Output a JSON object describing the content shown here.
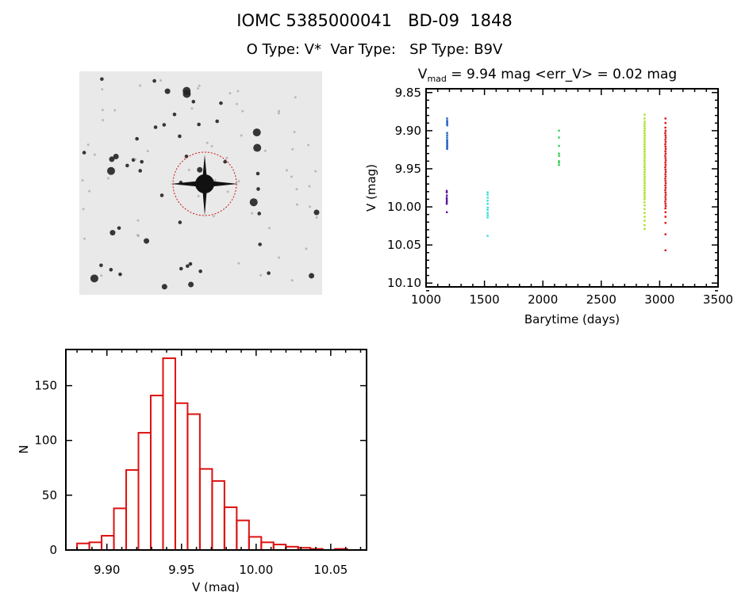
{
  "header": {
    "title": "IOMC 5385000041   BD-09  1848",
    "subtitle": "O Type: V*  Var Type:   SP Type: B9V"
  },
  "finder_image": {
    "circle_color": "#cc1111"
  },
  "chart_data": [
    {
      "type": "scatter",
      "title_main": "V",
      "title_sub": "mad",
      "title_rest": " = 9.94 mag <err_V> = 0.02 mag",
      "xlabel": "Barytime (days)",
      "ylabel": "V (mag)",
      "xlim": [
        1000,
        3500
      ],
      "ylim": [
        10.105,
        9.845
      ],
      "y_reversed": true,
      "xticks": [
        "1000",
        "1500",
        "2000",
        "2500",
        "3000",
        "3500"
      ],
      "yticks": [
        "9.85",
        "9.90",
        "9.95",
        "10.00",
        "10.05",
        "10.10"
      ],
      "grid": false,
      "series": [
        {
          "color": "#1f5fbf",
          "points": [
            [
              1180,
              9.884
            ],
            [
              1180,
              9.887
            ],
            [
              1181,
              9.889
            ],
            [
              1180,
              9.891
            ],
            [
              1181,
              9.893
            ],
            [
              1180,
              9.903
            ],
            [
              1181,
              9.906
            ],
            [
              1180,
              9.909
            ],
            [
              1180,
              9.912
            ],
            [
              1181,
              9.914
            ],
            [
              1180,
              9.916
            ],
            [
              1181,
              9.918
            ],
            [
              1180,
              9.92
            ],
            [
              1181,
              9.922
            ],
            [
              1180,
              9.924
            ]
          ]
        },
        {
          "color": "#5a1a9a",
          "points": [
            [
              1177,
              9.979
            ],
            [
              1177,
              9.981
            ],
            [
              1178,
              9.985
            ],
            [
              1177,
              9.988
            ],
            [
              1177,
              9.99
            ],
            [
              1178,
              9.992
            ],
            [
              1177,
              9.994
            ],
            [
              1177,
              9.996
            ],
            [
              1178,
              10.007
            ]
          ]
        },
        {
          "color": "#33dddd",
          "points": [
            [
              1527,
              9.981
            ],
            [
              1527,
              9.984
            ],
            [
              1528,
              9.988
            ],
            [
              1527,
              9.992
            ],
            [
              1527,
              9.996
            ],
            [
              1528,
              10.001
            ],
            [
              1527,
              10.004
            ],
            [
              1527,
              10.008
            ],
            [
              1528,
              10.011
            ],
            [
              1527,
              10.014
            ],
            [
              1527,
              10.038
            ]
          ]
        },
        {
          "color": "#33cc55",
          "points": [
            [
              2138,
              9.9
            ],
            [
              2138,
              9.909
            ],
            [
              2138,
              9.92
            ],
            [
              2138,
              9.93
            ],
            [
              2139,
              9.933
            ],
            [
              2138,
              9.94
            ],
            [
              2138,
              9.942
            ],
            [
              2138,
              9.945
            ]
          ]
        },
        {
          "color": "#a8e020",
          "points": [
            [
              2871,
              9.879
            ],
            [
              2870,
              9.884
            ],
            [
              2872,
              9.888
            ],
            [
              2871,
              9.891
            ],
            [
              2870,
              9.894
            ],
            [
              2872,
              9.897
            ],
            [
              2871,
              9.9
            ],
            [
              2870,
              9.903
            ],
            [
              2872,
              9.906
            ],
            [
              2871,
              9.909
            ],
            [
              2870,
              9.912
            ],
            [
              2872,
              9.915
            ],
            [
              2871,
              9.918
            ],
            [
              2870,
              9.921
            ],
            [
              2872,
              9.924
            ],
            [
              2871,
              9.927
            ],
            [
              2870,
              9.93
            ],
            [
              2872,
              9.933
            ],
            [
              2871,
              9.936
            ],
            [
              2870,
              9.939
            ],
            [
              2872,
              9.942
            ],
            [
              2871,
              9.945
            ],
            [
              2870,
              9.948
            ],
            [
              2872,
              9.951
            ],
            [
              2871,
              9.954
            ],
            [
              2870,
              9.957
            ],
            [
              2872,
              9.96
            ],
            [
              2871,
              9.963
            ],
            [
              2870,
              9.966
            ],
            [
              2872,
              9.969
            ],
            [
              2871,
              9.972
            ],
            [
              2870,
              9.975
            ],
            [
              2872,
              9.978
            ],
            [
              2871,
              9.981
            ],
            [
              2870,
              9.984
            ],
            [
              2872,
              9.987
            ],
            [
              2871,
              9.99
            ],
            [
              2870,
              9.994
            ],
            [
              2872,
              9.998
            ],
            [
              2871,
              10.003
            ],
            [
              2870,
              10.008
            ],
            [
              2872,
              10.013
            ],
            [
              2871,
              10.018
            ],
            [
              2870,
              10.024
            ],
            [
              2871,
              10.029
            ]
          ]
        },
        {
          "color": "#dd1111",
          "points": [
            [
              3050,
              9.884
            ],
            [
              3050,
              9.89
            ],
            [
              3049,
              9.896
            ],
            [
              3051,
              9.9
            ],
            [
              3048,
              9.903
            ],
            [
              3050,
              9.906
            ],
            [
              3052,
              9.909
            ],
            [
              3049,
              9.912
            ],
            [
              3051,
              9.915
            ],
            [
              3048,
              9.918
            ],
            [
              3050,
              9.921
            ],
            [
              3052,
              9.924
            ],
            [
              3049,
              9.927
            ],
            [
              3051,
              9.93
            ],
            [
              3048,
              9.933
            ],
            [
              3050,
              9.936
            ],
            [
              3052,
              9.939
            ],
            [
              3049,
              9.942
            ],
            [
              3051,
              9.945
            ],
            [
              3048,
              9.948
            ],
            [
              3050,
              9.951
            ],
            [
              3052,
              9.954
            ],
            [
              3049,
              9.957
            ],
            [
              3051,
              9.96
            ],
            [
              3048,
              9.963
            ],
            [
              3050,
              9.966
            ],
            [
              3052,
              9.969
            ],
            [
              3049,
              9.972
            ],
            [
              3051,
              9.975
            ],
            [
              3048,
              9.978
            ],
            [
              3050,
              9.981
            ],
            [
              3052,
              9.984
            ],
            [
              3049,
              9.987
            ],
            [
              3051,
              9.99
            ],
            [
              3048,
              9.993
            ],
            [
              3050,
              9.996
            ],
            [
              3052,
              9.999
            ],
            [
              3049,
              10.002
            ],
            [
              3050,
              10.007
            ],
            [
              3050,
              10.013
            ],
            [
              3050,
              10.021
            ],
            [
              3050,
              10.036
            ],
            [
              3050,
              10.057
            ]
          ]
        }
      ]
    },
    {
      "type": "bar",
      "subtype": "histogram",
      "xlabel": "V (mag)",
      "ylabel": "N",
      "xlim": [
        9.8725,
        10.074
      ],
      "ylim": [
        0,
        183
      ],
      "xticks": [
        "9.90",
        "9.95",
        "10.00",
        "10.05"
      ],
      "yticks": [
        "0",
        "50",
        "100",
        "150"
      ],
      "bin_start": 9.88,
      "bin_width": 0.00823,
      "counts": [
        6,
        7,
        13,
        38,
        73,
        107,
        141,
        175,
        134,
        124,
        74,
        63,
        39,
        27,
        12,
        7,
        5,
        3,
        2,
        1,
        0,
        1
      ],
      "bar_color": "#dd1111",
      "grid": false
    }
  ]
}
